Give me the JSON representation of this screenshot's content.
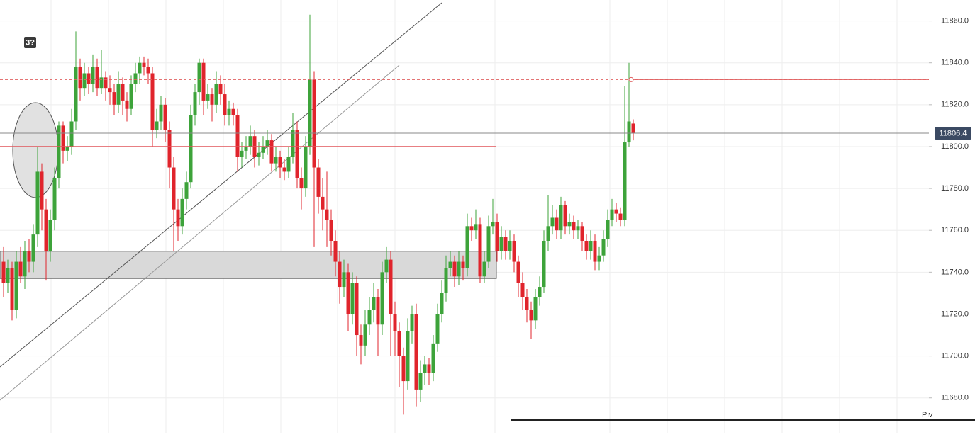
{
  "chart_data": {
    "type": "candlestick",
    "badge": "3?",
    "pivot_label": "Piv",
    "up_color": "#3da33a",
    "down_color": "#e0242c",
    "ylim": [
      11663,
      11870
    ],
    "yticks": [
      {
        "value": 11680,
        "label": "11680.0"
      },
      {
        "value": 11700,
        "label": "11700.0"
      },
      {
        "value": 11720,
        "label": "11720.0"
      },
      {
        "value": 11740,
        "label": "11740.0"
      },
      {
        "value": 11760,
        "label": "11760.0"
      },
      {
        "value": 11780,
        "label": "11780.0"
      },
      {
        "value": 11800,
        "label": "11800.0"
      },
      {
        "value": 11820,
        "label": "11820.0"
      },
      {
        "value": 11840,
        "label": "11840.0"
      },
      {
        "value": 11860,
        "label": "11860.0"
      }
    ],
    "grid": true,
    "last_price": 11806.4,
    "resistance_level": 11832,
    "support_level": 11800,
    "zone": [
      11737,
      11750
    ],
    "ohlc": [
      [
        11745,
        11752,
        11728,
        11735
      ],
      [
        11735,
        11746,
        11730,
        11742
      ],
      [
        11742,
        11745,
        11717,
        11722
      ],
      [
        11722,
        11750,
        11718,
        11745
      ],
      [
        11745,
        11752,
        11735,
        11738
      ],
      [
        11738,
        11755,
        11732,
        11750
      ],
      [
        11750,
        11756,
        11740,
        11745
      ],
      [
        11745,
        11763,
        11740,
        11758
      ],
      [
        11758,
        11800,
        11752,
        11788
      ],
      [
        11788,
        11792,
        11760,
        11770
      ],
      [
        11770,
        11775,
        11736,
        11750
      ],
      [
        11750,
        11770,
        11745,
        11765
      ],
      [
        11765,
        11790,
        11760,
        11785
      ],
      [
        11785,
        11812,
        11780,
        11810
      ],
      [
        11810,
        11812,
        11792,
        11798
      ],
      [
        11798,
        11805,
        11793,
        11800
      ],
      [
        11800,
        11818,
        11796,
        11812
      ],
      [
        11812,
        11855,
        11808,
        11838
      ],
      [
        11838,
        11842,
        11822,
        11828
      ],
      [
        11828,
        11840,
        11824,
        11835
      ],
      [
        11835,
        11838,
        11825,
        11830
      ],
      [
        11830,
        11844,
        11826,
        11838
      ],
      [
        11838,
        11842,
        11824,
        11828
      ],
      [
        11828,
        11846,
        11825,
        11833
      ],
      [
        11833,
        11836,
        11822,
        11828
      ],
      [
        11828,
        11834,
        11820,
        11826
      ],
      [
        11826,
        11830,
        11815,
        11820
      ],
      [
        11820,
        11836,
        11816,
        11830
      ],
      [
        11830,
        11833,
        11815,
        11822
      ],
      [
        11822,
        11826,
        11812,
        11818
      ],
      [
        11818,
        11834,
        11815,
        11830
      ],
      [
        11830,
        11840,
        11826,
        11835
      ],
      [
        11835,
        11843,
        11830,
        11840
      ],
      [
        11840,
        11843,
        11834,
        11838
      ],
      [
        11838,
        11842,
        11830,
        11835
      ],
      [
        11835,
        11838,
        11800,
        11808
      ],
      [
        11808,
        11818,
        11804,
        11812
      ],
      [
        11812,
        11824,
        11808,
        11820
      ],
      [
        11820,
        11823,
        11802,
        11808
      ],
      [
        11808,
        11812,
        11780,
        11790
      ],
      [
        11790,
        11795,
        11750,
        11770
      ],
      [
        11770,
        11775,
        11755,
        11762
      ],
      [
        11762,
        11780,
        11758,
        11775
      ],
      [
        11775,
        11788,
        11770,
        11783
      ],
      [
        11783,
        11820,
        11780,
        11815
      ],
      [
        11815,
        11830,
        11810,
        11826
      ],
      [
        11826,
        11842,
        11820,
        11840
      ],
      [
        11840,
        11842,
        11815,
        11822
      ],
      [
        11822,
        11830,
        11818,
        11825
      ],
      [
        11825,
        11828,
        11812,
        11820
      ],
      [
        11820,
        11836,
        11816,
        11830
      ],
      [
        11830,
        11834,
        11820,
        11825
      ],
      [
        11825,
        11830,
        11810,
        11815
      ],
      [
        11815,
        11822,
        11810,
        11818
      ],
      [
        11818,
        11821,
        11810,
        11815
      ],
      [
        11815,
        11818,
        11788,
        11795
      ],
      [
        11795,
        11802,
        11790,
        11798
      ],
      [
        11798,
        11805,
        11794,
        11800
      ],
      [
        11800,
        11810,
        11796,
        11805
      ],
      [
        11805,
        11808,
        11790,
        11795
      ],
      [
        11795,
        11802,
        11791,
        11797
      ],
      [
        11797,
        11805,
        11794,
        11800
      ],
      [
        11800,
        11808,
        11796,
        11803
      ],
      [
        11803,
        11806,
        11788,
        11792
      ],
      [
        11792,
        11800,
        11788,
        11795
      ],
      [
        11795,
        11798,
        11785,
        11790
      ],
      [
        11790,
        11794,
        11784,
        11788
      ],
      [
        11788,
        11800,
        11785,
        11795
      ],
      [
        11795,
        11816,
        11792,
        11808
      ],
      [
        11808,
        11812,
        11780,
        11785
      ],
      [
        11785,
        11790,
        11770,
        11780
      ],
      [
        11780,
        11805,
        11776,
        11800
      ],
      [
        11800,
        11863,
        11796,
        11832
      ],
      [
        11832,
        11836,
        11752,
        11790
      ],
      [
        11790,
        11794,
        11768,
        11776
      ],
      [
        11776,
        11785,
        11760,
        11770
      ],
      [
        11770,
        11788,
        11752,
        11765
      ],
      [
        11765,
        11770,
        11748,
        11755
      ],
      [
        11755,
        11760,
        11738,
        11745
      ],
      [
        11745,
        11750,
        11725,
        11733
      ],
      [
        11733,
        11746,
        11728,
        11740
      ],
      [
        11740,
        11744,
        11712,
        11720
      ],
      [
        11720,
        11740,
        11715,
        11735
      ],
      [
        11735,
        11738,
        11700,
        11710
      ],
      [
        11710,
        11715,
        11696,
        11705
      ],
      [
        11705,
        11722,
        11700,
        11715
      ],
      [
        11715,
        11728,
        11710,
        11722
      ],
      [
        11722,
        11735,
        11716,
        11728
      ],
      [
        11728,
        11732,
        11700,
        11715
      ],
      [
        11715,
        11745,
        11710,
        11740
      ],
      [
        11740,
        11752,
        11735,
        11746
      ],
      [
        11746,
        11750,
        11700,
        11720
      ],
      [
        11720,
        11726,
        11700,
        11712
      ],
      [
        11712,
        11716,
        11685,
        11700
      ],
      [
        11700,
        11704,
        11672,
        11688
      ],
      [
        11688,
        11718,
        11684,
        11712
      ],
      [
        11712,
        11724,
        11706,
        11720
      ],
      [
        11720,
        11725,
        11676,
        11684
      ],
      [
        11684,
        11698,
        11678,
        11692
      ],
      [
        11692,
        11700,
        11686,
        11696
      ],
      [
        11696,
        11699,
        11686,
        11692
      ],
      [
        11692,
        11710,
        11688,
        11706
      ],
      [
        11706,
        11725,
        11702,
        11720
      ],
      [
        11720,
        11736,
        11716,
        11730
      ],
      [
        11730,
        11748,
        11726,
        11742
      ],
      [
        11742,
        11750,
        11738,
        11745
      ],
      [
        11745,
        11748,
        11733,
        11738
      ],
      [
        11738,
        11750,
        11734,
        11745
      ],
      [
        11745,
        11748,
        11736,
        11742
      ],
      [
        11742,
        11768,
        11738,
        11762
      ],
      [
        11762,
        11766,
        11755,
        11760
      ],
      [
        11760,
        11770,
        11756,
        11763
      ],
      [
        11763,
        11766,
        11735,
        11738
      ],
      [
        11738,
        11750,
        11735,
        11745
      ],
      [
        11745,
        11767,
        11742,
        11762
      ],
      [
        11762,
        11775,
        11758,
        11764
      ],
      [
        11764,
        11768,
        11745,
        11750
      ],
      [
        11750,
        11762,
        11746,
        11757
      ],
      [
        11757,
        11760,
        11746,
        11750
      ],
      [
        11750,
        11760,
        11746,
        11755
      ],
      [
        11755,
        11758,
        11740,
        11745
      ],
      [
        11745,
        11748,
        11728,
        11735
      ],
      [
        11735,
        11740,
        11722,
        11728
      ],
      [
        11728,
        11732,
        11716,
        11722
      ],
      [
        11722,
        11726,
        11708,
        11717
      ],
      [
        11717,
        11732,
        11713,
        11728
      ],
      [
        11728,
        11738,
        11724,
        11733
      ],
      [
        11733,
        11760,
        11730,
        11755
      ],
      [
        11755,
        11777,
        11750,
        11762
      ],
      [
        11762,
        11772,
        11758,
        11766
      ],
      [
        11766,
        11770,
        11756,
        11760
      ],
      [
        11760,
        11776,
        11756,
        11772
      ],
      [
        11772,
        11774,
        11758,
        11762
      ],
      [
        11762,
        11768,
        11758,
        11764
      ],
      [
        11764,
        11767,
        11756,
        11760
      ],
      [
        11760,
        11765,
        11756,
        11762
      ],
      [
        11762,
        11764,
        11750,
        11755
      ],
      [
        11755,
        11758,
        11746,
        11750
      ],
      [
        11750,
        11760,
        11746,
        11755
      ],
      [
        11755,
        11758,
        11741,
        11745
      ],
      [
        11745,
        11752,
        11741,
        11748
      ],
      [
        11748,
        11760,
        11745,
        11756
      ],
      [
        11756,
        11770,
        11752,
        11765
      ],
      [
        11765,
        11775,
        11762,
        11770
      ],
      [
        11770,
        11773,
        11764,
        11768
      ],
      [
        11768,
        11771,
        11762,
        11765
      ],
      [
        11765,
        11829,
        11762,
        11802
      ],
      [
        11802,
        11840,
        11800,
        11812
      ],
      [
        11811,
        11813,
        11803,
        11806.4
      ]
    ]
  }
}
